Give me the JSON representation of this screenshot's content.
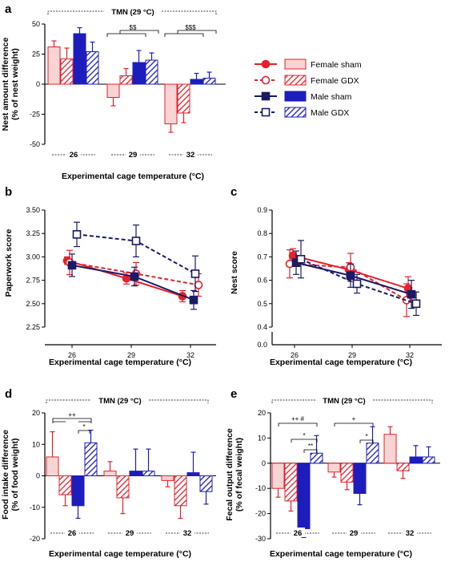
{
  "colors": {
    "female": "#e8202a",
    "female_light": "#f9d4d4",
    "male": "#1d1dbe",
    "male_dark": "#1a1a66"
  },
  "legend": {
    "items": [
      {
        "label": "Female sham",
        "color": "#e8202a",
        "dashed": false,
        "marker": "circle-filled",
        "bar": "light"
      },
      {
        "label": "Female GDX",
        "color": "#e8202a",
        "dashed": true,
        "marker": "circle-open",
        "bar": "hatched"
      },
      {
        "label": "Male sham",
        "color": "#1a1a66",
        "dashed": false,
        "marker": "square-filled",
        "bar": "solid"
      },
      {
        "label": "Male GDX",
        "color": "#1a1a66",
        "dashed": true,
        "marker": "square-open",
        "bar": "hatched"
      }
    ]
  },
  "chart_data": [
    {
      "id": "a",
      "panel_label": "a",
      "type": "bar",
      "ylabel": [
        "Nest amount difference",
        "(% of nest weight)"
      ],
      "xlabel": "Experimental cage temperature (°C)",
      "categories": [
        "26",
        "29",
        "32"
      ],
      "ylim": [
        -50,
        50
      ],
      "yticks": [
        -50,
        -25,
        0,
        25,
        50
      ],
      "bracket_text": "TMN (29 °C)",
      "series": [
        {
          "name": "Female sham",
          "values": [
            31,
            -11,
            -33
          ],
          "errors": [
            5,
            7,
            7
          ]
        },
        {
          "name": "Female GDX",
          "values": [
            21,
            7,
            -24
          ],
          "errors": [
            9,
            6,
            8
          ]
        },
        {
          "name": "Male sham",
          "values": [
            42,
            18,
            4
          ],
          "errors": [
            5,
            10,
            5
          ]
        },
        {
          "name": "Male GDX",
          "values": [
            27,
            20,
            5
          ],
          "errors": [
            8,
            6,
            5
          ]
        }
      ],
      "annotations": [
        {
          "text": "$$",
          "category": 1
        },
        {
          "text": "$$$",
          "category": 2
        }
      ]
    },
    {
      "id": "b",
      "panel_label": "b",
      "type": "line",
      "ylabel": [
        "Paperwork score"
      ],
      "xlabel": "Experimental cage temperature (°C)",
      "x": [
        26,
        29,
        32
      ],
      "ylim": [
        2.25,
        3.5
      ],
      "yticks": [
        "2.25",
        "2.50",
        "2.75",
        "3.00",
        "3.25",
        "3.50"
      ],
      "series": [
        {
          "name": "Female sham",
          "values": [
            2.96,
            2.77,
            2.58
          ],
          "errors": [
            0.04,
            0.06,
            0.06
          ]
        },
        {
          "name": "Female GDX",
          "values": [
            2.94,
            2.82,
            2.7
          ],
          "errors": [
            0.13,
            0.12,
            0.12
          ]
        },
        {
          "name": "Male sham",
          "values": [
            2.91,
            2.79,
            2.54
          ],
          "errors": [
            0.12,
            0.1,
            0.1
          ]
        },
        {
          "name": "Male GDX",
          "values": [
            3.24,
            3.17,
            2.82
          ],
          "errors": [
            0.13,
            0.17,
            0.19
          ]
        }
      ]
    },
    {
      "id": "c",
      "panel_label": "c",
      "type": "line",
      "ylabel": [
        "Nest score"
      ],
      "xlabel": "Experimental cage temperature (°C)",
      "x": [
        26,
        29,
        32
      ],
      "ylim": [
        0.4,
        0.9
      ],
      "yticks": [
        "0.4",
        "0.5",
        "0.6",
        "0.7",
        "0.8",
        "0.9"
      ],
      "break_tick": "0.0",
      "series": [
        {
          "name": "Female sham",
          "values": [
            0.705,
            0.645,
            0.565
          ],
          "errors": [
            0.03,
            0.03,
            0.05
          ]
        },
        {
          "name": "Female GDX",
          "values": [
            0.67,
            0.655,
            0.515
          ],
          "errors": [
            0.06,
            0.06,
            0.07
          ]
        },
        {
          "name": "Male sham",
          "values": [
            0.675,
            0.62,
            0.54
          ],
          "errors": [
            0.05,
            0.05,
            0.06
          ]
        },
        {
          "name": "Male GDX",
          "values": [
            0.69,
            0.585,
            0.5
          ],
          "errors": [
            0.08,
            0.04,
            0.05
          ]
        }
      ]
    },
    {
      "id": "d",
      "panel_label": "d",
      "type": "bar",
      "ylabel": [
        "Food intake difference",
        "(% of food weight)"
      ],
      "xlabel": "Experimental cage temperature (°C)",
      "categories": [
        "26",
        "29",
        "32"
      ],
      "ylim": [
        -20,
        20
      ],
      "yticks": [
        -20,
        -10,
        0,
        10,
        20
      ],
      "bracket_text": "TMN (29 °C)",
      "series": [
        {
          "name": "Female sham",
          "values": [
            6,
            1.5,
            -1.5
          ],
          "errors": [
            8,
            3,
            2
          ]
        },
        {
          "name": "Female GDX",
          "values": [
            -6,
            -7,
            -9.5
          ],
          "errors": [
            3.5,
            5,
            4
          ]
        },
        {
          "name": "Male sham",
          "values": [
            -9.5,
            1.5,
            1
          ],
          "errors": [
            4,
            7,
            6.5
          ]
        },
        {
          "name": "Male GDX",
          "values": [
            10.5,
            1.5,
            -5
          ],
          "errors": [
            4,
            7,
            4
          ]
        }
      ],
      "annotations": [
        {
          "text": "++"
        },
        {
          "text": "*"
        }
      ]
    },
    {
      "id": "e",
      "panel_label": "e",
      "type": "bar",
      "ylabel": [
        "Fecal output difference",
        "(% of fecal weight)"
      ],
      "xlabel": "Experimental cage temperature (°C)",
      "categories": [
        "26",
        "29",
        "32"
      ],
      "ylim": [
        -30,
        20
      ],
      "yticks": [
        -30,
        -20,
        -10,
        0,
        10,
        20
      ],
      "bracket_text": "TMN (29 °C)",
      "series": [
        {
          "name": "Female sham",
          "values": [
            -10,
            -3.5,
            11.5
          ],
          "errors": [
            3.5,
            2,
            3
          ]
        },
        {
          "name": "Female GDX",
          "values": [
            -15,
            -7.5,
            -3
          ],
          "errors": [
            4,
            3,
            3
          ]
        },
        {
          "name": "Male sham",
          "values": [
            -26,
            -12,
            2.5
          ],
          "errors": [
            3.5,
            4.5,
            4.5
          ]
        },
        {
          "name": "Male GDX",
          "values": [
            4,
            8,
            2.5
          ],
          "errors": [
            7,
            6.5,
            4
          ]
        }
      ],
      "annotations": [
        {
          "text": "++ #"
        },
        {
          "text": "*"
        },
        {
          "text": "**"
        },
        {
          "text": "+"
        },
        {
          "text": "*"
        }
      ]
    }
  ]
}
